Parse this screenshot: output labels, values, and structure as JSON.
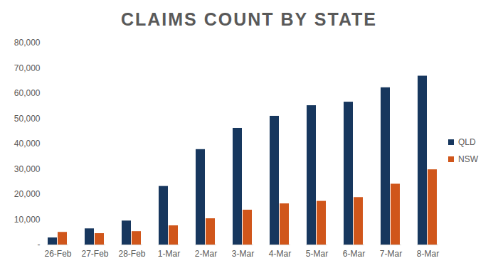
{
  "chart_data": {
    "type": "bar",
    "title": "CLAIMS COUNT BY STATE",
    "categories": [
      "26-Feb",
      "27-Feb",
      "28-Feb",
      "1-Mar",
      "2-Mar",
      "3-Mar",
      "4-Mar",
      "5-Mar",
      "6-Mar",
      "7-Mar",
      "8-Mar"
    ],
    "series": [
      {
        "name": "QLD",
        "color": "#17375e",
        "values": [
          2800,
          6400,
          9500,
          23200,
          37800,
          46200,
          51000,
          55200,
          56600,
          62300,
          66900
        ]
      },
      {
        "name": "NSW",
        "color": "#d0561b",
        "values": [
          5000,
          4500,
          5300,
          7600,
          10400,
          13800,
          16300,
          17300,
          18800,
          24100,
          29800
        ]
      }
    ],
    "ylim": [
      0,
      80000
    ],
    "yticks": [
      {
        "value": 0,
        "label": "-"
      },
      {
        "value": 10000,
        "label": "10,000"
      },
      {
        "value": 20000,
        "label": "20,000"
      },
      {
        "value": 30000,
        "label": "30,000"
      },
      {
        "value": 40000,
        "label": "40,000"
      },
      {
        "value": 50000,
        "label": "50,000"
      },
      {
        "value": 60000,
        "label": "60,000"
      },
      {
        "value": 70000,
        "label": "70,000"
      },
      {
        "value": 80000,
        "label": "80,000"
      }
    ],
    "grid": false,
    "legend": "right",
    "data_labels": false
  }
}
